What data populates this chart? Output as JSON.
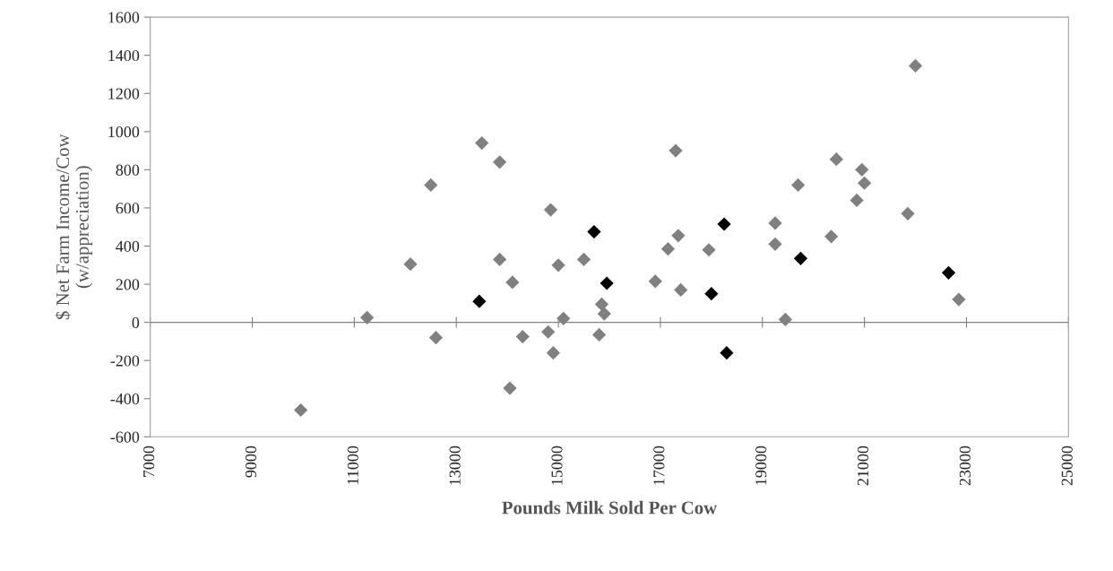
{
  "chart_data": {
    "type": "scatter",
    "xlabel": "Pounds Milk Sold Per Cow",
    "ylabel": "$ Net Farm Income/Cow\n(w/appreciation)",
    "xlim": [
      7000,
      25000
    ],
    "xticks": [
      7000,
      9000,
      11000,
      13000,
      15000,
      17000,
      19000,
      21000,
      23000,
      25000
    ],
    "ylim": [
      -600,
      1600
    ],
    "yticks": [
      -600,
      -400,
      -200,
      0,
      200,
      400,
      600,
      800,
      1000,
      1200,
      1400,
      1600
    ],
    "marker": "diamond",
    "grid": false,
    "legend": false,
    "ref_lines": [
      {
        "axis": "y",
        "value": 0,
        "color": "#808080"
      }
    ],
    "series": [
      {
        "color": "#808080",
        "x": [
          9950,
          11250,
          12100,
          12500,
          12600,
          13500,
          13850,
          13850,
          14100,
          14050,
          14300,
          14850,
          14800,
          14900,
          15000,
          15100,
          15500,
          15850,
          15900,
          15800,
          16900,
          17150,
          17300,
          17350,
          17400,
          17950,
          19250,
          19250,
          19450,
          19700,
          20350,
          20450,
          20850,
          20950,
          21000,
          21850,
          22000,
          22850
        ],
        "values": [
          -460,
          25,
          305,
          720,
          -80,
          940,
          840,
          330,
          210,
          -345,
          -75,
          590,
          -50,
          -160,
          300,
          20,
          330,
          95,
          45,
          -65,
          215,
          385,
          900,
          455,
          170,
          380,
          520,
          410,
          15,
          720,
          450,
          855,
          640,
          800,
          730,
          570,
          1345,
          120
        ]
      },
      {
        "color": "#000000",
        "x": [
          13450,
          15700,
          15950,
          18000,
          18250,
          18300,
          19750,
          22650
        ],
        "values": [
          110,
          475,
          205,
          150,
          515,
          -160,
          335,
          260
        ]
      }
    ]
  }
}
